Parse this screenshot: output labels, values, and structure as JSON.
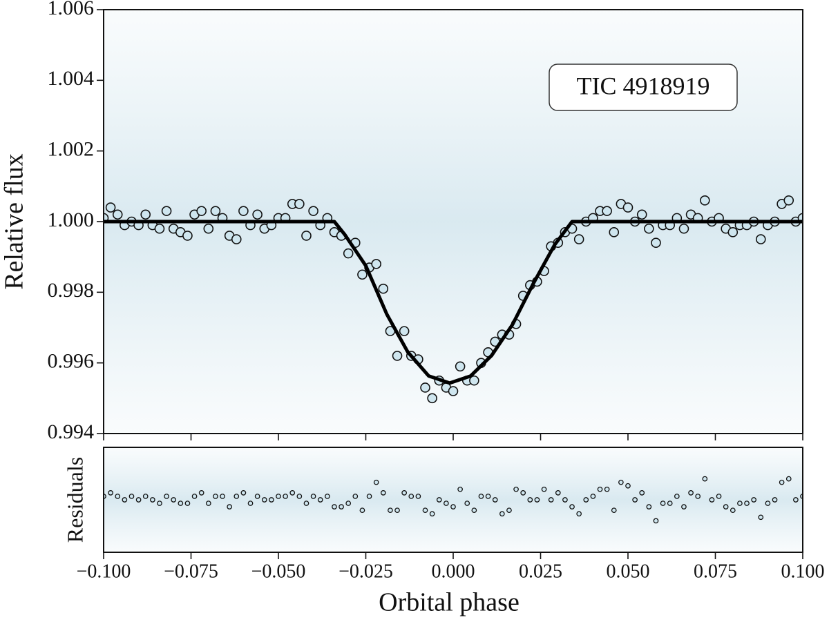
{
  "chart_data": [
    {
      "type": "scatter",
      "annotation": "TIC 4918919",
      "ylabel": "Relative flux",
      "xlim": [
        -0.1,
        0.1
      ],
      "ylim": [
        0.994,
        1.006
      ],
      "yticks": [
        1.006,
        1.004,
        1.002,
        {
          "value": 1.0,
          "label": "1.000"
        },
        0.998,
        0.996,
        0.994
      ],
      "series": [
        {
          "type": "scatter",
          "color": "#cfe6ef",
          "x": [
            -0.1,
            -0.098,
            -0.096,
            -0.094,
            -0.092,
            -0.09,
            -0.088,
            -0.086,
            -0.084,
            -0.082,
            -0.08,
            -0.078,
            -0.076,
            -0.074,
            -0.072,
            -0.07,
            -0.068,
            -0.066,
            -0.064,
            -0.062,
            -0.06,
            -0.058,
            -0.056,
            -0.054,
            -0.052,
            -0.05,
            -0.048,
            -0.046,
            -0.044,
            -0.042,
            -0.04,
            -0.038,
            -0.036,
            -0.034,
            -0.032,
            -0.03,
            -0.028,
            -0.026,
            -0.024,
            -0.022,
            -0.02,
            -0.018,
            -0.016,
            -0.014,
            -0.012,
            -0.01,
            -0.008,
            -0.006,
            -0.004,
            -0.002,
            0,
            0.002,
            0.004,
            0.006,
            0.008,
            0.01,
            0.012,
            0.014,
            0.016,
            0.018,
            0.02,
            0.022,
            0.024,
            0.026,
            0.028,
            0.03,
            0.032,
            0.034,
            0.036,
            0.038,
            0.04,
            0.042,
            0.044,
            0.046,
            0.048,
            0.05,
            0.052,
            0.054,
            0.056,
            0.058,
            0.06,
            0.062,
            0.064,
            0.066,
            0.068,
            0.07,
            0.072,
            0.074,
            0.076,
            0.078,
            0.08,
            0.082,
            0.084,
            0.086,
            0.088,
            0.09,
            0.092,
            0.094,
            0.096,
            0.098,
            0.1
          ],
          "values": [
            1.0001,
            1.0004,
            1.0002,
            0.9999,
            1,
            0.9999,
            1.0002,
            0.9999,
            0.9998,
            1.0003,
            0.9998,
            0.9997,
            0.9996,
            1.0002,
            1.0003,
            0.9998,
            1.0003,
            1.0001,
            0.9996,
            0.9995,
            1.0003,
            0.9999,
            1.0002,
            0.9998,
            0.9999,
            1.0001,
            1.0001,
            1.0005,
            1.0005,
            0.9996,
            1.0003,
            0.9999,
            1.0001,
            0.9997,
            0.9996,
            0.9991,
            0.9994,
            0.9985,
            0.9987,
            0.9988,
            0.9981,
            0.9969,
            0.9962,
            0.9969,
            0.9962,
            0.9961,
            0.9953,
            0.995,
            0.9955,
            0.9953,
            0.9952,
            0.9959,
            0.9955,
            0.9955,
            0.996,
            0.9963,
            0.9966,
            0.9968,
            0.9968,
            0.9971,
            0.9979,
            0.9982,
            0.9983,
            0.9986,
            0.9993,
            0.9994,
            0.9997,
            0.9998,
            0.9995,
            1,
            1.0001,
            1.0003,
            1.0003,
            0.9997,
            1.0005,
            1.0004,
            1,
            1.0002,
            0.9998,
            0.9994,
            0.9999,
            0.9999,
            1.0001,
            0.9998,
            1.0002,
            1.0001,
            1.0006,
            1,
            1.0001,
            0.9998,
            0.9997,
            0.9999,
            0.9999,
            1,
            0.9995,
            0.9999,
            1,
            1.0005,
            1.0006,
            1,
            1.0001
          ]
        },
        {
          "type": "line",
          "color": "#000000",
          "x": [
            -0.1,
            -0.034,
            -0.031,
            -0.025,
            -0.019,
            -0.013,
            -0.007,
            -0.001,
            0.005,
            0.011,
            0.017,
            0.023,
            0.029,
            0.034,
            0.1
          ],
          "values": [
            1,
            1,
            0.99963,
            0.99875,
            0.99738,
            0.99631,
            0.99563,
            0.99543,
            0.99563,
            0.99621,
            0.99709,
            0.99826,
            0.99934,
            1,
            1
          ]
        }
      ]
    },
    {
      "type": "scatter",
      "ylabel": "Residuals",
      "xlabel": "Orbital phase",
      "xlim": [
        -0.1,
        0.1
      ],
      "ylim": [
        -0.0015,
        0.0015
      ],
      "xticks": [
        {
          "value": -0.1,
          "label": "−0.100"
        },
        {
          "value": -0.075,
          "label": "−0.075"
        },
        {
          "value": -0.05,
          "label": "−0.050"
        },
        {
          "value": -0.025,
          "label": "−0.025"
        },
        {
          "value": 0,
          "label": "0.000"
        },
        0.025,
        {
          "value": 0.05,
          "label": "0.050"
        },
        0.075,
        {
          "value": 0.1,
          "label": "0.100"
        }
      ],
      "series": [
        {
          "type": "scatter",
          "color": "#cfe6ef",
          "x": [
            -0.1,
            -0.098,
            -0.096,
            -0.094,
            -0.092,
            -0.09,
            -0.088,
            -0.086,
            -0.084,
            -0.082,
            -0.08,
            -0.078,
            -0.076,
            -0.074,
            -0.072,
            -0.07,
            -0.068,
            -0.066,
            -0.064,
            -0.062,
            -0.06,
            -0.058,
            -0.056,
            -0.054,
            -0.052,
            -0.05,
            -0.048,
            -0.046,
            -0.044,
            -0.042,
            -0.04,
            -0.038,
            -0.036,
            -0.034,
            -0.032,
            -0.03,
            -0.028,
            -0.026,
            -0.024,
            -0.022,
            -0.02,
            -0.018,
            -0.016,
            -0.014,
            -0.012,
            -0.01,
            -0.008,
            -0.006,
            -0.004,
            -0.002,
            0,
            0.002,
            0.004,
            0.006,
            0.008,
            0.01,
            0.012,
            0.014,
            0.016,
            0.018,
            0.02,
            0.022,
            0.024,
            0.026,
            0.028,
            0.03,
            0.032,
            0.034,
            0.036,
            0.038,
            0.04,
            0.042,
            0.044,
            0.046,
            0.048,
            0.05,
            0.052,
            0.054,
            0.056,
            0.058,
            0.06,
            0.062,
            0.064,
            0.066,
            0.068,
            0.07,
            0.072,
            0.074,
            0.076,
            0.078,
            0.08,
            0.082,
            0.084,
            0.086,
            0.088,
            0.09,
            0.092,
            0.094,
            0.096,
            0.098,
            0.1
          ],
          "values": [
            0.0001,
            0.0002,
            0.0001,
            0,
            0.0001,
            0,
            0.0001,
            0,
            -0.0001,
            0.0001,
            0,
            -0.0001,
            -0.0001,
            0.0001,
            0.0002,
            -0.0001,
            0.0001,
            0.0001,
            -0.0002,
            0.0001,
            0.0002,
            -0.0001,
            0.0001,
            0,
            0,
            0.0001,
            0.0001,
            0.0002,
            0.0001,
            -0.0001,
            0.0001,
            0,
            0.0001,
            -0.0002,
            -0.0002,
            -0.0001,
            0.0001,
            -0.0003,
            0.0001,
            0.0005,
            0.0002,
            -0.0003,
            -0.0003,
            0.0002,
            0.0001,
            0.0001,
            -0.0003,
            -0.0004,
            0,
            -0.0001,
            -0.0002,
            0.0003,
            -0.0001,
            -0.0003,
            0.0001,
            0.0001,
            0,
            -0.0004,
            -0.0003,
            0.0003,
            0.0002,
            0,
            0,
            0.0003,
            0,
            0.0002,
            0,
            -0.0002,
            -0.0004,
            0,
            0.0001,
            0.0003,
            0.0003,
            -0.0003,
            0.0005,
            0.0004,
            0,
            0.0002,
            -0.0002,
            -0.0006,
            -0.0001,
            -0.0001,
            0.0001,
            -0.0002,
            0.0002,
            0.0001,
            0.0006,
            0,
            0.0001,
            -0.0002,
            -0.0003,
            -0.0001,
            -0.0001,
            0,
            -0.0005,
            -0.0001,
            0,
            0.0005,
            0.0006,
            0,
            0.0001
          ]
        }
      ]
    }
  ]
}
